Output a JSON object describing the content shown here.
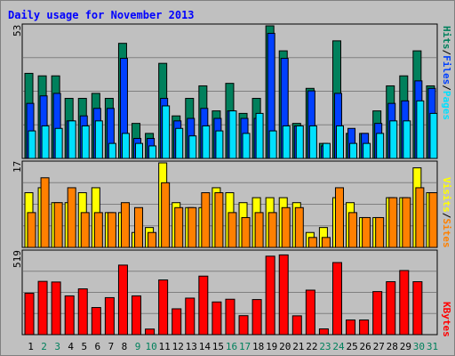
{
  "title": "Daily usage for November 2013",
  "colors": {
    "hits": "#00805c",
    "files": "#0040ff",
    "pages": "#00e0ff",
    "visits": "#ffff00",
    "sites": "#ff8000",
    "kbytes": "#ff0000",
    "weekday_label": "#000000",
    "weekend_label": "#00805c",
    "background": "#c0c0c0",
    "title_color": "#0000ff"
  },
  "chart_data": [
    {
      "type": "bar",
      "name": "hits-files-pages",
      "ymax_label": "53",
      "ylim": [
        0,
        53
      ],
      "legend": [
        "Pages",
        "Files",
        "Hits"
      ],
      "separator": "/",
      "categories": [
        "1",
        "2",
        "3",
        "4",
        "5",
        "6",
        "7",
        "8",
        "9",
        "10",
        "11",
        "12",
        "13",
        "14",
        "15",
        "16",
        "17",
        "18",
        "19",
        "20",
        "21",
        "22",
        "23",
        "24",
        "25",
        "26",
        "27",
        "28",
        "29",
        "30",
        "31"
      ],
      "series": [
        {
          "name": "Hits",
          "values": [
            34,
            33,
            33,
            24,
            24,
            26,
            24,
            46,
            14,
            10,
            38,
            17,
            24,
            29,
            19,
            30,
            18,
            24,
            53,
            43,
            14,
            28,
            6,
            47,
            10,
            10,
            19,
            29,
            33,
            43,
            29
          ]
        },
        {
          "name": "Files",
          "values": [
            22,
            25,
            26,
            15,
            17,
            20,
            20,
            40,
            8,
            8,
            24,
            15,
            16,
            20,
            16,
            19,
            16,
            16,
            50,
            40,
            13,
            27,
            5,
            26,
            12,
            10,
            14,
            22,
            23,
            31,
            28
          ]
        },
        {
          "name": "Pages",
          "values": [
            11,
            13,
            12,
            15,
            13,
            15,
            6,
            10,
            6,
            5,
            21,
            12,
            9,
            13,
            11,
            19,
            10,
            18,
            11,
            13,
            13,
            13,
            6,
            13,
            6,
            6,
            10,
            15,
            15,
            23,
            18
          ]
        }
      ]
    },
    {
      "type": "bar",
      "name": "visits-sites",
      "ymax_label": "17",
      "ylim": [
        0,
        17
      ],
      "legend": [
        "Sites",
        "Visits"
      ],
      "separator": "/",
      "categories": [
        "1",
        "2",
        "3",
        "4",
        "5",
        "6",
        "7",
        "8",
        "9",
        "10",
        "11",
        "12",
        "13",
        "14",
        "15",
        "16",
        "17",
        "18",
        "19",
        "20",
        "21",
        "22",
        "23",
        "24",
        "25",
        "26",
        "27",
        "28",
        "29",
        "30",
        "31"
      ],
      "series": [
        {
          "name": "Visits",
          "values": [
            11,
            12,
            9,
            9,
            11,
            12,
            7,
            7,
            3,
            4,
            17,
            9,
            8,
            8,
            12,
            11,
            9,
            10,
            10,
            10,
            9,
            3,
            4,
            10,
            9,
            6,
            6,
            10,
            10,
            16,
            11
          ]
        },
        {
          "name": "Sites",
          "values": [
            7,
            14,
            9,
            12,
            7,
            7,
            7,
            9,
            8,
            3,
            13,
            8,
            8,
            11,
            11,
            7,
            6,
            7,
            7,
            8,
            8,
            2,
            2,
            12,
            7,
            6,
            6,
            10,
            10,
            12,
            11
          ]
        }
      ]
    },
    {
      "type": "bar",
      "name": "kbytes",
      "ymax_label": "519",
      "ylim": [
        0,
        519
      ],
      "legend": [
        "KBytes"
      ],
      "categories": [
        "1",
        "2",
        "3",
        "4",
        "5",
        "6",
        "7",
        "8",
        "9",
        "10",
        "11",
        "12",
        "13",
        "14",
        "15",
        "16",
        "17",
        "18",
        "19",
        "20",
        "21",
        "22",
        "23",
        "24",
        "25",
        "26",
        "27",
        "28",
        "29",
        "30",
        "31"
      ],
      "series": [
        {
          "name": "KBytes",
          "values": [
            260,
            334,
            330,
            243,
            287,
            170,
            232,
            436,
            243,
            35,
            343,
            162,
            229,
            367,
            205,
            222,
            119,
            220,
            492,
            500,
            118,
            279,
            36,
            452,
            92,
            92,
            270,
            332,
            402,
            332,
            0
          ]
        }
      ]
    }
  ],
  "x_axis": {
    "labels": [
      "1",
      "2",
      "3",
      "4",
      "5",
      "6",
      "7",
      "8",
      "9",
      "10",
      "11",
      "12",
      "13",
      "14",
      "15",
      "16",
      "17",
      "18",
      "19",
      "20",
      "21",
      "22",
      "23",
      "24",
      "25",
      "26",
      "27",
      "28",
      "29",
      "30",
      "31"
    ],
    "weekend": [
      false,
      true,
      true,
      false,
      false,
      false,
      false,
      false,
      true,
      true,
      false,
      false,
      false,
      false,
      false,
      true,
      true,
      false,
      false,
      false,
      false,
      false,
      true,
      true,
      false,
      false,
      false,
      false,
      false,
      true,
      true
    ]
  }
}
